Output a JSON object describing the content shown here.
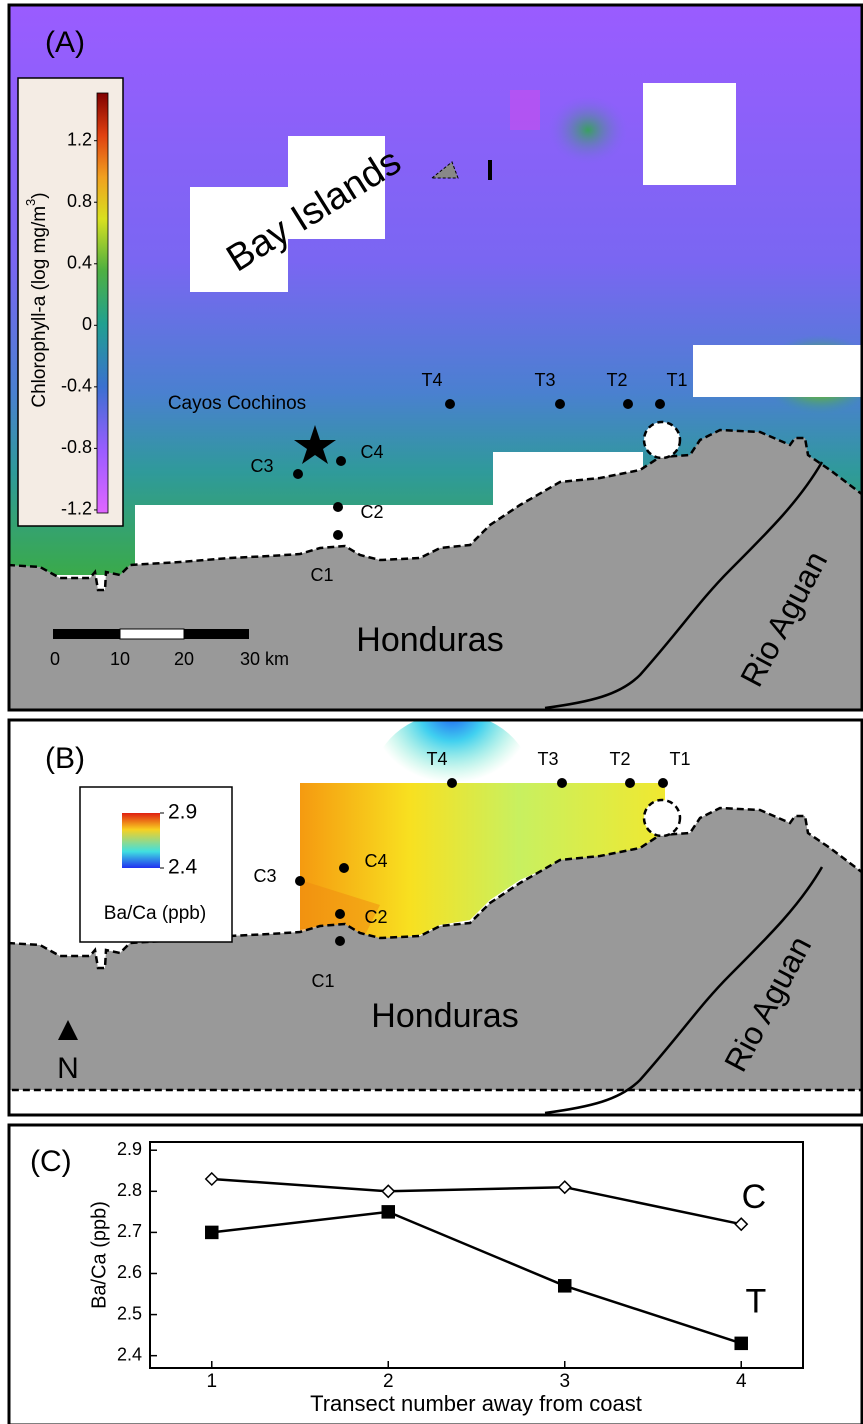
{
  "panel_a": {
    "label": "(A)",
    "colorbar": {
      "title_parts": [
        "Chlorophyll-a (log mg/m",
        "3",
        ")"
      ],
      "range": [
        -1.22,
        1.51
      ],
      "ticks": [
        1.2,
        0.8,
        0.4,
        0,
        -0.4,
        -0.8,
        -1.2
      ]
    },
    "bay_islands": "Bay Islands",
    "cayos_cochinos": "Cayos Cochinos",
    "sites": [
      "T4",
      "T3",
      "T2",
      "T1",
      "C3",
      "C4",
      "C2",
      "C1"
    ],
    "country": "Honduras",
    "river": "Rio Aguan",
    "scale_bar": [
      "0",
      "10",
      "20",
      "30 km"
    ]
  },
  "panel_b": {
    "label": "(B)",
    "legend": {
      "ticks": [
        2.9,
        2.4
      ],
      "title": "Ba/Ca (ppb)"
    },
    "sites": [
      "T4",
      "T3",
      "T2",
      "T1",
      "C3",
      "C4",
      "C2",
      "C1"
    ],
    "country": "Honduras",
    "river": "Rio Aguan",
    "north": "N"
  },
  "chart_data": {
    "type": "line",
    "label": "(C)",
    "x_label": "Transect number away from coast",
    "y_label": "Ba/Ca (ppb)",
    "x": [
      1,
      2,
      3,
      4
    ],
    "xlim": [
      0.65,
      4.35
    ],
    "xticks": [
      1,
      2,
      3,
      4
    ],
    "ylim": [
      2.37,
      2.92
    ],
    "yticks": [
      2.4,
      2.5,
      2.6,
      2.7,
      2.8,
      2.9
    ],
    "series": [
      {
        "name": "C",
        "color": "#ffffff",
        "marker": "diamond",
        "values": [
          2.83,
          2.8,
          2.81,
          2.72
        ]
      },
      {
        "name": "T",
        "color": "#000000",
        "marker": "square",
        "values": [
          2.7,
          2.75,
          2.57,
          2.43
        ]
      }
    ]
  }
}
